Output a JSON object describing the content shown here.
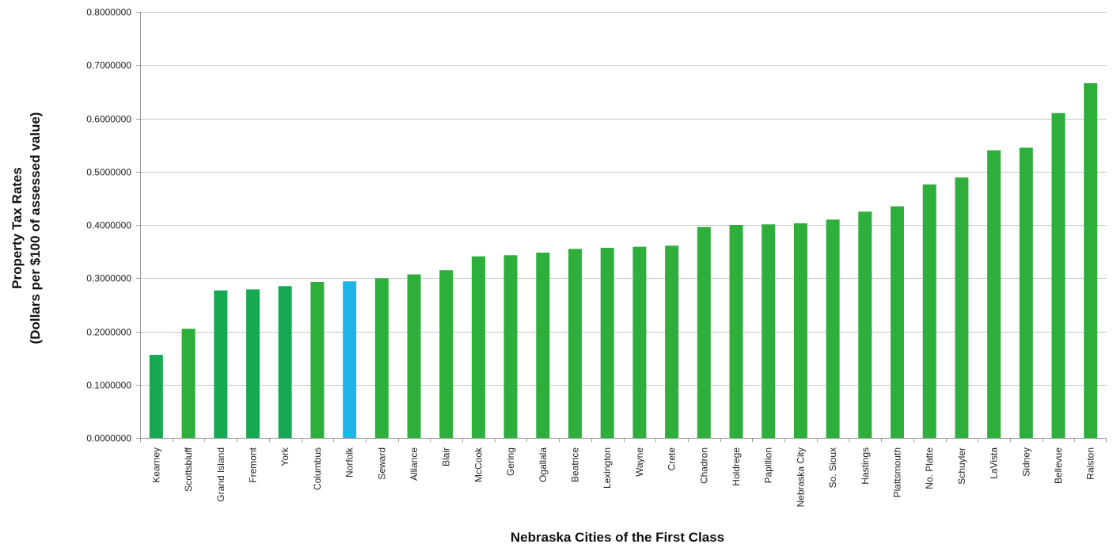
{
  "chart_data": {
    "type": "bar",
    "title": "",
    "xlabel": "Nebraska Cities of the First Class",
    "ylabel_line1": "Property Tax Rates",
    "ylabel_line2": "(Dollars per $100 of assessed value)",
    "ylim": [
      0,
      0.8
    ],
    "yticks": [
      0.0,
      0.1,
      0.2,
      0.3,
      0.4,
      0.5,
      0.6,
      0.7,
      0.8
    ],
    "ytick_labels": [
      "0.0000000",
      "0.1000000",
      "0.2000000",
      "0.3000000",
      "0.4000000",
      "0.5000000",
      "0.6000000",
      "0.7000000",
      "0.8000000"
    ],
    "grid": true,
    "categories": [
      "Kearney",
      "Scottsbluff",
      "Grand Island",
      "Fremont",
      "York",
      "Columbus",
      "Norfolk",
      "Seward",
      "Alliance",
      "Blair",
      "McCook",
      "Gering",
      "Ogallala",
      "Beatrice",
      "Lexington",
      "Wayne",
      "Crete",
      "Chadron",
      "Holdrege",
      "Papillion",
      "Nebraska City",
      "So. Sioux",
      "Hastings",
      "Plattsmouth",
      "No. Platte",
      "Schuyler",
      "LaVista",
      "Sidney",
      "Bellevue",
      "Ralston"
    ],
    "values": [
      0.156,
      0.205,
      0.277,
      0.279,
      0.285,
      0.293,
      0.294,
      0.3,
      0.307,
      0.315,
      0.341,
      0.343,
      0.348,
      0.355,
      0.357,
      0.359,
      0.361,
      0.396,
      0.4,
      0.401,
      0.403,
      0.41,
      0.425,
      0.435,
      0.476,
      0.489,
      0.54,
      0.545,
      0.61,
      0.666
    ],
    "colors": [
      "#17a853",
      "#2eaf3c",
      "#17a853",
      "#17a853",
      "#17a853",
      "#2eaf3c",
      "#1fb5e8",
      "#2eaf3c",
      "#2eaf3c",
      "#2eaf3c",
      "#2eaf3c",
      "#2eaf3c",
      "#2eaf3c",
      "#2eaf3c",
      "#2eaf3c",
      "#2eaf3c",
      "#2eaf3c",
      "#2eaf3c",
      "#2eaf3c",
      "#2eaf3c",
      "#2eaf3c",
      "#2eaf3c",
      "#2eaf3c",
      "#2eaf3c",
      "#2eaf3c",
      "#2eaf3c",
      "#2eaf3c",
      "#2eaf3c",
      "#2eaf3c",
      "#2eaf3c"
    ],
    "gridline_color": "#c8c8c8",
    "axis_color": "#9a9a9a"
  }
}
